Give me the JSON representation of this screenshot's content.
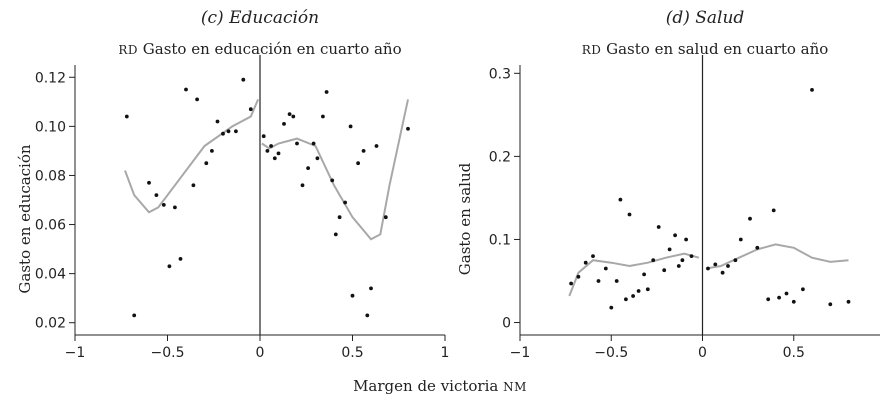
{
  "xlabel": {
    "main": "Margen de victoria ",
    "sc": "nm"
  },
  "chart_data": [
    {
      "type": "scatter",
      "title": "(c) Educación",
      "subtitle": {
        "sc": "rd",
        "text": " Gasto en educación en cuarto año"
      },
      "ylabel": "Gasto en educación",
      "xlim": [
        -1,
        1
      ],
      "ylim": [
        0.015,
        0.125
      ],
      "xticks": [
        -1,
        -0.5,
        0,
        0.5,
        1
      ],
      "xtick_labels": [
        "−1",
        "−0.5",
        "0",
        "0.5",
        "1"
      ],
      "yticks": [
        0.02,
        0.04,
        0.06,
        0.08,
        0.1,
        0.12
      ],
      "ytick_labels": [
        "0.02",
        "0.04",
        "0.06",
        "0.08",
        "0.10",
        "0.12"
      ],
      "cutoff": 0,
      "points": [
        [
          -0.72,
          0.104
        ],
        [
          -0.68,
          0.023
        ],
        [
          -0.6,
          0.077
        ],
        [
          -0.56,
          0.072
        ],
        [
          -0.52,
          0.068
        ],
        [
          -0.49,
          0.043
        ],
        [
          -0.46,
          0.067
        ],
        [
          -0.43,
          0.046
        ],
        [
          -0.4,
          0.115
        ],
        [
          -0.36,
          0.076
        ],
        [
          -0.34,
          0.111
        ],
        [
          -0.29,
          0.085
        ],
        [
          -0.26,
          0.09
        ],
        [
          -0.23,
          0.102
        ],
        [
          -0.2,
          0.097
        ],
        [
          -0.17,
          0.098
        ],
        [
          -0.13,
          0.098
        ],
        [
          -0.09,
          0.119
        ],
        [
          -0.05,
          0.107
        ],
        [
          0.02,
          0.096
        ],
        [
          0.04,
          0.09
        ],
        [
          0.06,
          0.092
        ],
        [
          0.08,
          0.087
        ],
        [
          0.1,
          0.089
        ],
        [
          0.13,
          0.101
        ],
        [
          0.16,
          0.105
        ],
        [
          0.18,
          0.104
        ],
        [
          0.2,
          0.093
        ],
        [
          0.23,
          0.076
        ],
        [
          0.26,
          0.083
        ],
        [
          0.29,
          0.093
        ],
        [
          0.31,
          0.087
        ],
        [
          0.34,
          0.104
        ],
        [
          0.36,
          0.114
        ],
        [
          0.39,
          0.078
        ],
        [
          0.41,
          0.056
        ],
        [
          0.43,
          0.063
        ],
        [
          0.46,
          0.069
        ],
        [
          0.49,
          0.1
        ],
        [
          0.5,
          0.031
        ],
        [
          0.53,
          0.085
        ],
        [
          0.56,
          0.09
        ],
        [
          0.58,
          0.023
        ],
        [
          0.6,
          0.034
        ],
        [
          0.63,
          0.092
        ],
        [
          0.68,
          0.063
        ],
        [
          0.8,
          0.099
        ]
      ],
      "fit_left": [
        [
          -0.73,
          0.082
        ],
        [
          -0.68,
          0.072
        ],
        [
          -0.6,
          0.065
        ],
        [
          -0.55,
          0.067
        ],
        [
          -0.45,
          0.077
        ],
        [
          -0.3,
          0.092
        ],
        [
          -0.15,
          0.1
        ],
        [
          -0.05,
          0.104
        ],
        [
          -0.01,
          0.111
        ]
      ],
      "fit_right": [
        [
          0.01,
          0.093
        ],
        [
          0.05,
          0.091
        ],
        [
          0.1,
          0.093
        ],
        [
          0.2,
          0.095
        ],
        [
          0.3,
          0.092
        ],
        [
          0.4,
          0.076
        ],
        [
          0.5,
          0.063
        ],
        [
          0.6,
          0.054
        ],
        [
          0.65,
          0.056
        ],
        [
          0.7,
          0.076
        ],
        [
          0.8,
          0.111
        ]
      ]
    },
    {
      "type": "scatter",
      "title": "(d) Salud",
      "subtitle": {
        "sc": "rd",
        "text": " Gasto en salud en cuarto año"
      },
      "ylabel": "Gasto en salud",
      "xlim": [
        -1,
        1
      ],
      "ylim": [
        -0.015,
        0.31
      ],
      "xticks": [
        -1,
        -0.5,
        0,
        0.5,
        1
      ],
      "xtick_labels": [
        "−1",
        "−0.5",
        "0",
        "0.5",
        "1"
      ],
      "yticks": [
        0,
        0.1,
        0.2,
        0.3
      ],
      "ytick_labels": [
        "0",
        "0.1",
        "0.2",
        "0.3"
      ],
      "cutoff": 0,
      "points": [
        [
          -0.72,
          0.047
        ],
        [
          -0.68,
          0.055
        ],
        [
          -0.64,
          0.072
        ],
        [
          -0.6,
          0.08
        ],
        [
          -0.57,
          0.05
        ],
        [
          -0.53,
          0.065
        ],
        [
          -0.5,
          0.018
        ],
        [
          -0.47,
          0.05
        ],
        [
          -0.45,
          0.148
        ],
        [
          -0.42,
          0.028
        ],
        [
          -0.4,
          0.13
        ],
        [
          -0.38,
          0.032
        ],
        [
          -0.35,
          0.038
        ],
        [
          -0.32,
          0.058
        ],
        [
          -0.3,
          0.04
        ],
        [
          -0.27,
          0.075
        ],
        [
          -0.24,
          0.115
        ],
        [
          -0.21,
          0.063
        ],
        [
          -0.18,
          0.088
        ],
        [
          -0.15,
          0.105
        ],
        [
          -0.13,
          0.068
        ],
        [
          -0.11,
          0.075
        ],
        [
          -0.09,
          0.1
        ],
        [
          -0.06,
          0.08
        ],
        [
          0.03,
          0.065
        ],
        [
          0.07,
          0.07
        ],
        [
          0.11,
          0.06
        ],
        [
          0.14,
          0.068
        ],
        [
          0.18,
          0.075
        ],
        [
          0.21,
          0.1
        ],
        [
          0.26,
          0.125
        ],
        [
          0.3,
          0.09
        ],
        [
          0.36,
          0.028
        ],
        [
          0.39,
          0.135
        ],
        [
          0.42,
          0.03
        ],
        [
          0.46,
          0.035
        ],
        [
          0.5,
          0.025
        ],
        [
          0.55,
          0.04
        ],
        [
          0.6,
          0.28
        ],
        [
          0.7,
          0.022
        ],
        [
          0.8,
          0.025
        ]
      ],
      "fit_left": [
        [
          -0.73,
          0.032
        ],
        [
          -0.68,
          0.06
        ],
        [
          -0.6,
          0.075
        ],
        [
          -0.5,
          0.072
        ],
        [
          -0.4,
          0.068
        ],
        [
          -0.3,
          0.072
        ],
        [
          -0.2,
          0.078
        ],
        [
          -0.1,
          0.083
        ],
        [
          -0.02,
          0.078
        ]
      ],
      "fit_right": [
        [
          0.02,
          0.065
        ],
        [
          0.1,
          0.068
        ],
        [
          0.2,
          0.078
        ],
        [
          0.3,
          0.088
        ],
        [
          0.4,
          0.094
        ],
        [
          0.5,
          0.09
        ],
        [
          0.6,
          0.078
        ],
        [
          0.7,
          0.073
        ],
        [
          0.8,
          0.075
        ]
      ]
    }
  ]
}
